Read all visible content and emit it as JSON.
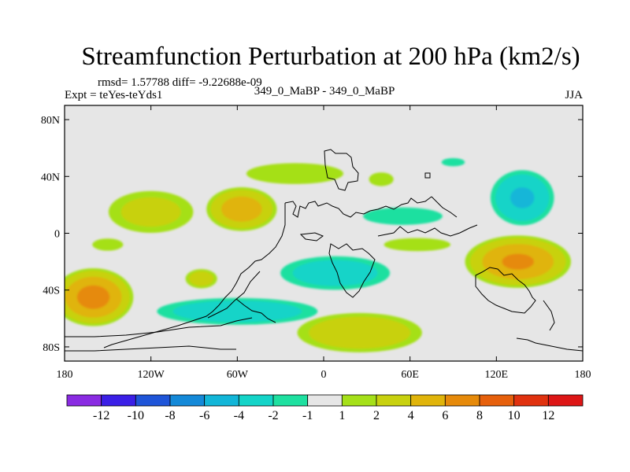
{
  "chart_data": {
    "type": "heatmap",
    "title": "Streamfunction Perturbation at 200 hPa (km2/s)",
    "stats_label": "rmsd= 1.57788 diff= -9.22688e-09",
    "experiment_label": "Expt = teYes-teYds1",
    "case_label": "349_0_MaBP - 349_0_MaBP",
    "season": "JJA",
    "xlim": [
      -180,
      180
    ],
    "ylim": [
      -90,
      90
    ],
    "x_ticks": [
      {
        "value": -180,
        "label": "180"
      },
      {
        "value": -120,
        "label": "120W"
      },
      {
        "value": -60,
        "label": "60W"
      },
      {
        "value": 0,
        "label": "0"
      },
      {
        "value": 60,
        "label": "60E"
      },
      {
        "value": 120,
        "label": "120E"
      },
      {
        "value": 180,
        "label": "180"
      }
    ],
    "y_ticks": [
      {
        "value": 80,
        "label": "80N"
      },
      {
        "value": 40,
        "label": "40N"
      },
      {
        "value": 0,
        "label": "0"
      },
      {
        "value": -40,
        "label": "40S"
      },
      {
        "value": -80,
        "label": "80S"
      }
    ],
    "colorbar": {
      "colors": [
        "#8a2be2",
        "#3b1fe6",
        "#1f55d8",
        "#1489d8",
        "#12b6d8",
        "#14d4c8",
        "#1ee0a0",
        "#e6e6e6",
        "#a5e019",
        "#c8d10f",
        "#e0b40a",
        "#e68a0a",
        "#e6600c",
        "#e0320f",
        "#dd1616"
      ],
      "labels": [
        "-12",
        "-10",
        "-8",
        "-6",
        "-4",
        "-2",
        "-1",
        "1",
        "2",
        "4",
        "6",
        "8",
        "10",
        "12"
      ]
    },
    "features": [
      {
        "name": "nh-ridge-n-atlantic",
        "lon": -20,
        "lat": 42,
        "rx": 55,
        "ry": 12,
        "value": 1.6
      },
      {
        "name": "nh-ridge-w-asia",
        "lon": 40,
        "lat": 38,
        "rx": 16,
        "ry": 9,
        "value": 1.4
      },
      {
        "name": "nh-ridge-npacific",
        "lon": -120,
        "lat": 15,
        "rx": 36,
        "ry": 18,
        "value": 3.0
      },
      {
        "name": "nh-ridge-nwatlantic",
        "lon": -57,
        "lat": 17,
        "rx": 27,
        "ry": 17,
        "value": 5.5
      },
      {
        "name": "trough-n-pacific",
        "lon": 138,
        "lat": 25,
        "rx": 25,
        "ry": 22,
        "value": -4.5
      },
      {
        "name": "trough-arctic-asia",
        "lon": 90,
        "lat": 50,
        "rx": 14,
        "ry": 5,
        "value": -1.5
      },
      {
        "name": "trough-n-africa",
        "lon": 55,
        "lat": 12,
        "rx": 45,
        "ry": 10,
        "value": -1.6
      },
      {
        "name": "ridge-africa-asia",
        "lon": 65,
        "lat": -8,
        "rx": 40,
        "ry": 8,
        "value": 1.5
      },
      {
        "name": "ridge-e-indian",
        "lon": 135,
        "lat": -20,
        "rx": 40,
        "ry": 20,
        "value": 6.5
      },
      {
        "name": "trough-s-atlantic",
        "lon": 8,
        "lat": -28,
        "rx": 45,
        "ry": 14,
        "value": -3.5
      },
      {
        "name": "trough-se-pacific",
        "lon": -60,
        "lat": -55,
        "rx": 65,
        "ry": 11,
        "value": -3.8
      },
      {
        "name": "ridge-s-ocean",
        "lon": 25,
        "lat": -70,
        "rx": 50,
        "ry": 16,
        "value": 4.0
      },
      {
        "name": "ridge-sw-pacific",
        "lon": -160,
        "lat": -45,
        "rx": 30,
        "ry": 22,
        "value": 7.0
      },
      {
        "name": "ridge-tropic-e-pacific",
        "lon": -85,
        "lat": -32,
        "rx": 13,
        "ry": 8,
        "value": 3.5
      },
      {
        "name": "ridge-sw-pacific-tail",
        "lon": -150,
        "lat": -8,
        "rx": 20,
        "ry": 8,
        "value": 1.4
      }
    ]
  }
}
